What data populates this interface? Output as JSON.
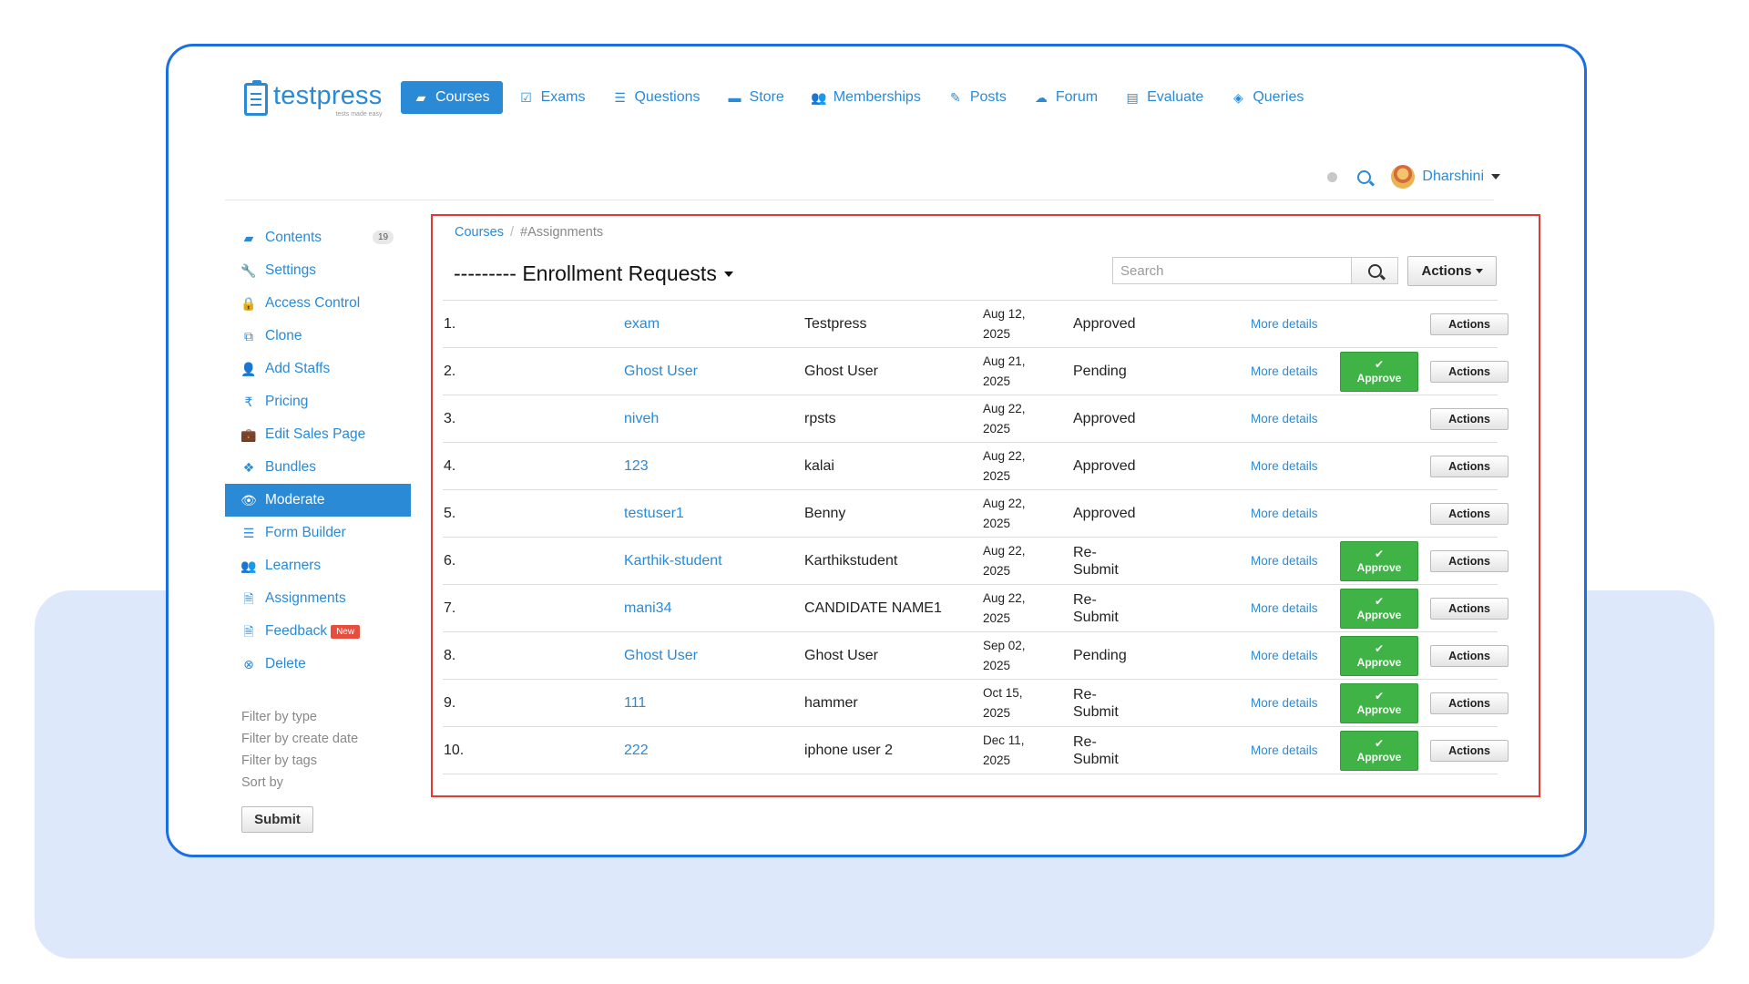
{
  "brand": {
    "name": "testpress",
    "tagline": "tests made easy"
  },
  "nav": [
    {
      "label": "Courses",
      "icon": "book-icon",
      "glyph": "▰",
      "active": true
    },
    {
      "label": "Exams",
      "icon": "checklist-icon",
      "glyph": "☑"
    },
    {
      "label": "Questions",
      "icon": "list-icon",
      "glyph": "☰"
    },
    {
      "label": "Store",
      "icon": "store-icon",
      "glyph": "▬"
    },
    {
      "label": "Memberships",
      "icon": "users-icon",
      "glyph": "👥"
    },
    {
      "label": "Posts",
      "icon": "edit-icon",
      "glyph": "✎"
    },
    {
      "label": "Forum",
      "icon": "comments-icon",
      "glyph": "☁"
    },
    {
      "label": "Evaluate",
      "icon": "file-icon",
      "glyph": "▤"
    },
    {
      "label": "Queries",
      "icon": "tag-icon",
      "glyph": "◈"
    }
  ],
  "user": {
    "name": "Dharshini"
  },
  "sidebar": {
    "items": [
      {
        "label": "Contents",
        "icon": "book-icon",
        "glyph": "▰",
        "badge": "19"
      },
      {
        "label": "Settings",
        "icon": "wrench-icon",
        "glyph": "🔧"
      },
      {
        "label": "Access Control",
        "icon": "lock-icon",
        "glyph": "🔒"
      },
      {
        "label": "Clone",
        "icon": "copy-icon",
        "glyph": "⧉"
      },
      {
        "label": "Add Staffs",
        "icon": "user-add-icon",
        "glyph": "👤"
      },
      {
        "label": "Pricing",
        "icon": "rupee-icon",
        "glyph": "₹"
      },
      {
        "label": "Edit Sales Page",
        "icon": "briefcase-icon",
        "glyph": "💼"
      },
      {
        "label": "Bundles",
        "icon": "dropbox-icon",
        "glyph": "❖"
      },
      {
        "label": "Moderate",
        "icon": "eye-icon",
        "glyph": "👁",
        "active": true
      },
      {
        "label": "Form Builder",
        "icon": "align-icon",
        "glyph": "☰"
      },
      {
        "label": "Learners",
        "icon": "users-icon",
        "glyph": "👥"
      },
      {
        "label": "Assignments",
        "icon": "doc-icon",
        "glyph": "🗎"
      },
      {
        "label": "Feedback",
        "icon": "doc-icon",
        "glyph": "🗎",
        "new": "New"
      },
      {
        "label": "Delete",
        "icon": "remove-icon",
        "glyph": "⊗"
      }
    ],
    "filters": [
      "Filter by type",
      "Filter by create date",
      "Filter by tags",
      "Sort by"
    ],
    "submit_label": "Submit"
  },
  "breadcrumb": {
    "root": "Courses",
    "separator": "/",
    "current": "#Assignments"
  },
  "title": "--------- Enrollment Requests",
  "search": {
    "placeholder": "Search"
  },
  "actions_label": "Actions",
  "more_label": "More details",
  "approve_label": "Approve",
  "row_actions_label": "Actions",
  "rows": [
    {
      "num": "1.",
      "username": "exam",
      "name": "Testpress",
      "date1": "Aug 12,",
      "date2": "2025",
      "status1": "Approved",
      "status2": "",
      "approve": false
    },
    {
      "num": "2.",
      "username": "Ghost User",
      "name": "Ghost User",
      "date1": "Aug 21,",
      "date2": "2025",
      "status1": "Pending",
      "status2": "",
      "approve": true
    },
    {
      "num": "3.",
      "username": "niveh",
      "name": "rpsts",
      "date1": "Aug 22,",
      "date2": "2025",
      "status1": "Approved",
      "status2": "",
      "approve": false
    },
    {
      "num": "4.",
      "username": "123",
      "name": "kalai",
      "date1": "Aug 22,",
      "date2": "2025",
      "status1": "Approved",
      "status2": "",
      "approve": false
    },
    {
      "num": "5.",
      "username": "testuser1",
      "name": "Benny",
      "date1": "Aug 22,",
      "date2": "2025",
      "status1": "Approved",
      "status2": "",
      "approve": false
    },
    {
      "num": "6.",
      "username": "Karthik-student",
      "name": "Karthikstudent",
      "date1": "Aug 22,",
      "date2": "2025",
      "status1": "Re-",
      "status2": "Submit",
      "approve": true
    },
    {
      "num": "7.",
      "username": "mani34",
      "name": "CANDIDATE NAME1",
      "date1": "Aug 22,",
      "date2": "2025",
      "status1": "Re-",
      "status2": "Submit",
      "approve": true
    },
    {
      "num": "8.",
      "username": "Ghost User",
      "name": "Ghost User",
      "date1": "Sep 02,",
      "date2": "2025",
      "status1": "Pending",
      "status2": "",
      "approve": true
    },
    {
      "num": "9.",
      "username": "111",
      "name": "hammer",
      "date1": "Oct 15,",
      "date2": "2025",
      "status1": "Re-",
      "status2": "Submit",
      "approve": true
    },
    {
      "num": "10.",
      "username": "222",
      "name": "iphone user 2",
      "date1": "Dec 11,",
      "date2": "2025",
      "status1": "Re-",
      "status2": "Submit",
      "approve": true
    }
  ]
}
